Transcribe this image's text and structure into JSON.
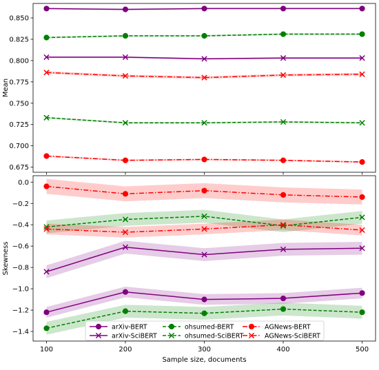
{
  "chart_data": {
    "type": "line",
    "x": [
      100,
      200,
      300,
      400,
      500
    ],
    "xlabel": "Sample size, documents",
    "xticks": [
      100,
      200,
      300,
      400,
      500
    ],
    "xlim": [
      83,
      517
    ],
    "grid": false,
    "legend_placement": "lower center of bottom panel, 3 columns",
    "series_styles": [
      {
        "name": "arXiv-BERT",
        "color": "#800080",
        "marker": "circle",
        "dash": "solid"
      },
      {
        "name": "arXiv-SciBERT",
        "color": "#800080",
        "marker": "x",
        "dash": "solid"
      },
      {
        "name": "ohsumed-BERT",
        "color": "#008000",
        "marker": "circle",
        "dash": "dashed"
      },
      {
        "name": "ohsumed-SciBERT",
        "color": "#008000",
        "marker": "x",
        "dash": "dashed"
      },
      {
        "name": "AGNews-BERT",
        "color": "#ff0000",
        "marker": "circle",
        "dash": "dashdot"
      },
      {
        "name": "AGNews-SciBERT",
        "color": "#ff0000",
        "marker": "x",
        "dash": "dashdot"
      }
    ],
    "legend": [
      "arXiv-BERT",
      "arXiv-SciBERT",
      "ohsumed-BERT",
      "ohsumed-SciBERT",
      "AGNews-BERT",
      "AGNews-SciBERT"
    ],
    "panels": [
      {
        "ylabel": "Mean",
        "ylim": [
          0.669,
          0.867
        ],
        "yticks": [
          0.675,
          0.7,
          0.725,
          0.75,
          0.775,
          0.8,
          0.825,
          0.85
        ],
        "yticklabels": [
          "0.675",
          "0.700",
          "0.725",
          "0.750",
          "0.775",
          "0.800",
          "0.825",
          "0.850"
        ],
        "series": [
          {
            "name": "arXiv-BERT",
            "values": [
              0.861,
              0.86,
              0.861,
              0.861,
              0.861
            ],
            "band": 0.001
          },
          {
            "name": "arXiv-SciBERT",
            "values": [
              0.804,
              0.804,
              0.802,
              0.803,
              0.803
            ],
            "band": 0.001
          },
          {
            "name": "ohsumed-BERT",
            "values": [
              0.827,
              0.829,
              0.829,
              0.831,
              0.831
            ],
            "band": 0.001
          },
          {
            "name": "ohsumed-SciBERT",
            "values": [
              0.733,
              0.727,
              0.727,
              0.728,
              0.727
            ],
            "band": 0.001
          },
          {
            "name": "AGNews-BERT",
            "values": [
              0.688,
              0.683,
              0.684,
              0.683,
              0.681
            ],
            "band": 0.001
          },
          {
            "name": "AGNews-SciBERT",
            "values": [
              0.786,
              0.782,
              0.78,
              0.783,
              0.784
            ],
            "band": 0.0015
          }
        ]
      },
      {
        "ylabel": "Skewness",
        "ylim": [
          -1.49,
          0.06
        ],
        "yticks": [
          -1.4,
          -1.2,
          -1.0,
          -0.8,
          -0.6,
          -0.4,
          -0.2,
          0.0
        ],
        "yticklabels": [
          "−1.4",
          "−1.2",
          "−1.0",
          "−0.8",
          "−0.6",
          "−0.4",
          "−0.2",
          "0.0"
        ],
        "series": [
          {
            "name": "arXiv-BERT",
            "values": [
              -1.22,
              -1.03,
              -1.1,
              -1.09,
              -1.04
            ],
            "band": 0.05
          },
          {
            "name": "arXiv-SciBERT",
            "values": [
              -0.84,
              -0.61,
              -0.68,
              -0.63,
              -0.62
            ],
            "band": 0.06
          },
          {
            "name": "ohsumed-BERT",
            "values": [
              -1.37,
              -1.21,
              -1.23,
              -1.19,
              -1.22
            ],
            "band": 0.06
          },
          {
            "name": "ohsumed-SciBERT",
            "values": [
              -0.42,
              -0.35,
              -0.32,
              -0.41,
              -0.33
            ],
            "band": 0.06
          },
          {
            "name": "AGNews-BERT",
            "values": [
              -0.04,
              -0.11,
              -0.08,
              -0.12,
              -0.14
            ],
            "band": 0.07
          },
          {
            "name": "AGNews-SciBERT",
            "values": [
              -0.44,
              -0.47,
              -0.44,
              -0.4,
              -0.45
            ],
            "band": 0.05
          }
        ]
      }
    ]
  }
}
